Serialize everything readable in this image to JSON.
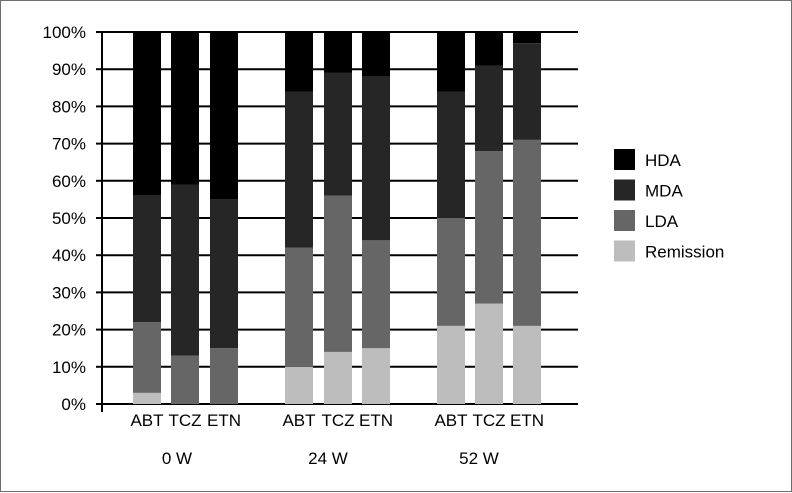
{
  "chart_data": {
    "type": "bar",
    "stacked": true,
    "percent": true,
    "title": "",
    "xlabel": "",
    "ylabel": "",
    "ylim": [
      0,
      100
    ],
    "yticks": [
      "0%",
      "10%",
      "20%",
      "30%",
      "40%",
      "50%",
      "60%",
      "70%",
      "80%",
      "90%",
      "100%"
    ],
    "groups": [
      "0 W",
      "24 W",
      "52 W"
    ],
    "categories": [
      "ABT",
      "TCZ",
      "ETN",
      "ABT",
      "TCZ",
      "ETN",
      "ABT",
      "TCZ",
      "ETN"
    ],
    "series": [
      {
        "name": "Remission",
        "color": "#bdbdbd",
        "values": [
          3,
          0,
          0,
          10,
          14,
          15,
          21,
          27,
          21
        ]
      },
      {
        "name": "LDA",
        "color": "#666666",
        "values": [
          19,
          13,
          15,
          32,
          42,
          29,
          29,
          41,
          50
        ]
      },
      {
        "name": "MDA",
        "color": "#262626",
        "values": [
          34,
          46,
          40,
          42,
          33,
          44,
          34,
          23,
          26
        ]
      },
      {
        "name": "HDA",
        "color": "#000000",
        "values": [
          44,
          41,
          45,
          16,
          11,
          12,
          16,
          9,
          3
        ]
      }
    ],
    "legend": {
      "position": "right",
      "order": [
        "HDA",
        "MDA",
        "LDA",
        "Remission"
      ]
    },
    "grid": true
  }
}
